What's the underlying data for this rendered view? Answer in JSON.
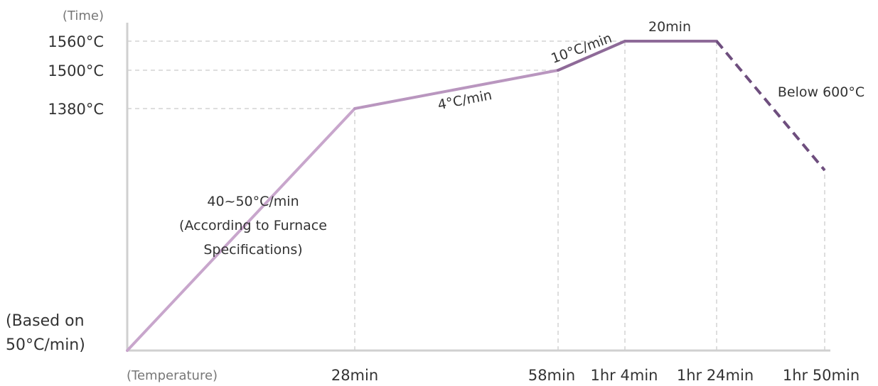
{
  "chart_data": {
    "type": "line",
    "y_axis_name": "(Time)",
    "x_axis_name": "(Temperature)",
    "baseline_note": [
      "(Based on",
      "50°C/min)"
    ],
    "x_ticks": [
      {
        "label": "28min",
        "minutes": 28
      },
      {
        "label": "58min",
        "minutes": 58
      },
      {
        "label": "1hr 4min",
        "minutes": 64
      },
      {
        "label": "1hr 24min",
        "minutes": 84
      },
      {
        "label": "1hr 50min",
        "minutes": 110
      }
    ],
    "y_ticks": [
      {
        "label": "1380°C",
        "value": 1380
      },
      {
        "label": "1500°C",
        "value": 1500
      },
      {
        "label": "1560°C",
        "value": 1560
      }
    ],
    "segments": [
      {
        "from": [
          0,
          50
        ],
        "to": [
          28,
          1380
        ],
        "style": "solid",
        "color": "#c8a6cc"
      },
      {
        "from": [
          28,
          1380
        ],
        "to": [
          58,
          1500
        ],
        "style": "solid",
        "color": "#b996bf"
      },
      {
        "from": [
          58,
          1500
        ],
        "to": [
          64,
          1560
        ],
        "style": "solid",
        "color": "#8e6a98"
      },
      {
        "from": [
          64,
          1560
        ],
        "to": [
          84,
          1560
        ],
        "style": "solid",
        "color": "#8e6a98"
      },
      {
        "from": [
          84,
          1560
        ],
        "to": [
          110,
          600
        ],
        "style": "dashed",
        "color": "#6e4e7e"
      }
    ],
    "annotations": {
      "heat_rate_1": [
        "40~50°C/min",
        "(According to Furnace",
        "Specifications)"
      ],
      "heat_rate_2": "4°C/min",
      "heat_rate_3": "10°C/min",
      "hold": "20min",
      "cool": "Below 600°C"
    },
    "colors": {
      "axis": "#d0d0d0",
      "grid": "#dedede"
    }
  }
}
